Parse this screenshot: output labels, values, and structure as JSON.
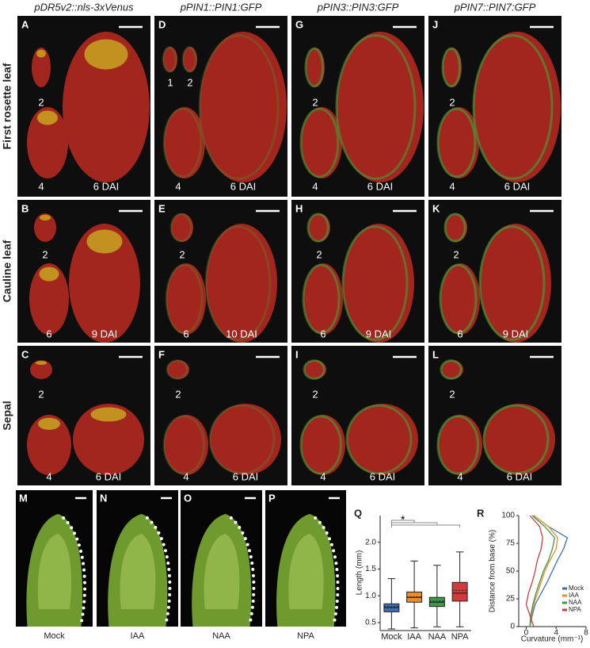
{
  "column_titles": [
    "pDR5v2::nls-3xVenus",
    "pPIN1::PIN1:GFP",
    "pPIN3::PIN3:GFP",
    "pPIN7::PIN7:GFP"
  ],
  "row_titles": [
    "First rosette leaf",
    "Cauline leaf",
    "Sepal"
  ],
  "panels": [
    {
      "letter": "A",
      "labels": [
        "2",
        "4",
        "6 DAI"
      ]
    },
    {
      "letter": "D",
      "labels": [
        "1",
        "2",
        "4",
        "6 DAI"
      ]
    },
    {
      "letter": "G",
      "labels": [
        "2",
        "4",
        "6 DAI"
      ]
    },
    {
      "letter": "J",
      "labels": [
        "2",
        "4",
        "6 DAI"
      ]
    },
    {
      "letter": "B",
      "labels": [
        "2",
        "6",
        "9 DAI"
      ]
    },
    {
      "letter": "E",
      "labels": [
        "2",
        "6",
        "10 DAI"
      ]
    },
    {
      "letter": "H",
      "labels": [
        "2",
        "6",
        "9 DAI"
      ]
    },
    {
      "letter": "K",
      "labels": [
        "2",
        "6",
        "9 DAI"
      ]
    },
    {
      "letter": "C",
      "labels": [
        "2",
        "4",
        "6 DAI"
      ]
    },
    {
      "letter": "F",
      "labels": [
        "2",
        "4",
        "6 DAI"
      ]
    },
    {
      "letter": "I",
      "labels": [
        "2",
        "4",
        "6 DAI"
      ]
    },
    {
      "letter": "L",
      "labels": [
        "2",
        "4",
        "6 DAI"
      ]
    }
  ],
  "photos": [
    {
      "letter": "M",
      "caption": "Mock"
    },
    {
      "letter": "N",
      "caption": "IAA"
    },
    {
      "letter": "O",
      "caption": "NAA"
    },
    {
      "letter": "P",
      "caption": "NPA"
    }
  ],
  "chart_q": {
    "type": "box",
    "letter": "Q",
    "ylabel": "Length (mm)",
    "significance": "*",
    "ylim": [
      0.35,
      2.5
    ],
    "yticks": [
      {
        "value": 0.5,
        "label": "0.5"
      },
      {
        "value": 1,
        "label": "1.0"
      },
      {
        "value": 1.5,
        "label": "1.5"
      },
      {
        "value": 2,
        "label": "2.0"
      }
    ],
    "boxes": [
      {
        "name": "Mock",
        "color": "#3a6fb0",
        "whisker_low": 0.38,
        "q1": 0.7,
        "median": 0.78,
        "q3": 0.85,
        "whisker_high": 1.32,
        "mean": 0.8
      },
      {
        "name": "IAA",
        "color": "#ef8a2a",
        "whisker_low": 0.4,
        "q1": 0.88,
        "median": 0.97,
        "q3": 1.07,
        "whisker_high": 1.65,
        "mean": 0.98
      },
      {
        "name": "NAA",
        "color": "#3a9a48",
        "whisker_low": 0.42,
        "q1": 0.8,
        "median": 0.88,
        "q3": 0.97,
        "whisker_high": 1.57,
        "mean": 0.9
      },
      {
        "name": "NPA",
        "color": "#d23a3a",
        "whisker_low": 0.42,
        "q1": 0.9,
        "median": 1.05,
        "q3": 1.25,
        "whisker_high": 1.82,
        "mean": 1.1
      }
    ]
  },
  "chart_r": {
    "type": "line",
    "letter": "R",
    "xlabel": "Curvature (mm⁻¹)",
    "ylabel": "Distance from base (%)",
    "xlim": [
      -1,
      8
    ],
    "xticks": [
      0,
      4,
      8
    ],
    "ylim": [
      0,
      100
    ],
    "yticks": [
      0,
      25,
      50,
      75,
      100
    ],
    "y": [
      0,
      10,
      20,
      30,
      40,
      50,
      60,
      70,
      80,
      90,
      100
    ],
    "legend": "lower right",
    "series": [
      {
        "name": "Mock",
        "color": "#3a6fb0",
        "values": [
          0.5,
          0.8,
          1.2,
          2,
          2.8,
          3.5,
          4.2,
          5,
          5.5,
          3,
          1
        ]
      },
      {
        "name": "IAA",
        "color": "#ef8a2a",
        "values": [
          0.5,
          0.7,
          1,
          1.5,
          2,
          2.5,
          3.2,
          4,
          4.2,
          3,
          1
        ]
      },
      {
        "name": "NAA",
        "color": "#3a9a48",
        "values": [
          0.5,
          0.6,
          0.9,
          1.3,
          1.8,
          2.3,
          3,
          3.5,
          3.8,
          2.5,
          0.8
        ]
      },
      {
        "name": "NPA",
        "color": "#d23a3a",
        "values": [
          1,
          0.5,
          0,
          0.3,
          0.8,
          1.2,
          1.5,
          2,
          2.2,
          1.8,
          0.5
        ]
      }
    ]
  }
}
